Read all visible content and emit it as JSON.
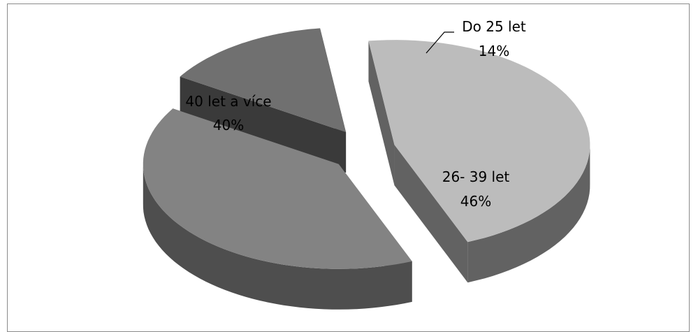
{
  "chart_data": {
    "type": "pie",
    "style": "3d-exploded",
    "title": "",
    "legend": "none",
    "slices": [
      {
        "label": "Do 25 let",
        "percent": 14,
        "pct_label": "14%",
        "top_color": "#707070",
        "side_color": "#3a3a3a"
      },
      {
        "label": "26- 39 let",
        "percent": 46,
        "pct_label": "46%",
        "top_color": "#bcbcbc",
        "side_color": "#626262"
      },
      {
        "label": "40 let a více",
        "percent": 40,
        "pct_label": "40%",
        "top_color": "#838383",
        "side_color": "#4e4e4e"
      }
    ]
  }
}
